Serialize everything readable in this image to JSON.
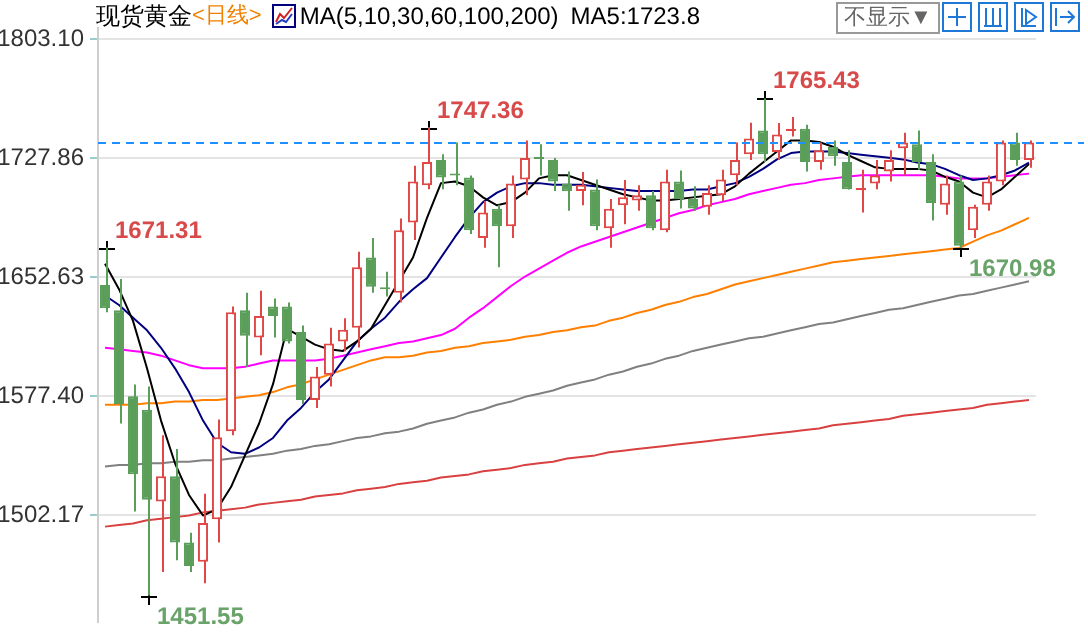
{
  "chart_data": {
    "type": "candlestick",
    "title": "现货黄金",
    "subtitle": "<日线>",
    "annotations": [
      "MA(5,10,30,60,100,200)",
      "MA5:1723.8",
      "不显示▼",
      "1671.31",
      "1451.55",
      "1747.36",
      "1765.43",
      "1670.98"
    ],
    "categories": [
      null,
      null,
      null,
      null,
      null,
      null,
      null,
      null,
      null,
      null,
      null,
      null,
      null,
      null,
      null,
      null,
      null,
      null,
      null,
      null,
      null,
      null,
      null,
      null,
      null,
      null,
      null,
      null,
      null,
      null,
      null,
      null,
      null,
      null,
      null,
      null,
      null,
      null,
      null,
      null,
      null,
      null,
      null,
      null,
      null,
      null,
      null,
      null,
      null,
      null,
      null,
      null,
      null,
      null,
      null,
      null,
      null,
      null,
      null,
      null,
      null,
      null,
      null,
      null,
      null,
      null,
      null
    ],
    "ohlc": [
      [
        1647.7,
        1671.31,
        1630.4,
        1632.9
      ],
      [
        1631.7,
        1651.4,
        1560.1,
        1572.5
      ],
      [
        1577.4,
        1584.8,
        1504.6,
        1528.1
      ],
      [
        1568.8,
        1583.6,
        1451.55,
        1512.0
      ],
      [
        1510.8,
        1552.7,
        1466.4,
        1526.8
      ],
      [
        1526.8,
        1544.1,
        1473.8,
        1485.0
      ],
      [
        1485.0,
        1491.1,
        1466.4,
        1470.1
      ],
      [
        1472.8,
        1515.7,
        1459.3,
        1497.3
      ],
      [
        1499.7,
        1562.6,
        1485.0,
        1551.5
      ],
      [
        1555.2,
        1634.1,
        1552.7,
        1630.4
      ],
      [
        1631.7,
        1642.8,
        1595.9,
        1615.6
      ],
      [
        1614.4,
        1644.0,
        1603.3,
        1628.0
      ],
      [
        1634.1,
        1639.1,
        1614.4,
        1628.0
      ],
      [
        1634.0,
        1636.6,
        1610.7,
        1612.0
      ],
      [
        1618.0,
        1622.0,
        1572.5,
        1575.0
      ],
      [
        1575.0,
        1595.9,
        1570.0,
        1589.8
      ],
      [
        1591.0,
        1620.6,
        1583.6,
        1610.7
      ],
      [
        1612.0,
        1626.7,
        1605.8,
        1619.3
      ],
      [
        1620.6,
        1668.7,
        1608.2,
        1658.8
      ],
      [
        1665.0,
        1677.3,
        1642.8,
        1646.5
      ],
      [
        1646.0,
        1656.0,
        1640.3,
        1645.0
      ],
      [
        1642.8,
        1689.6,
        1636.6,
        1682.2
      ],
      [
        1687.2,
        1722.9,
        1676.1,
        1713.1
      ],
      [
        1710.6,
        1747.36,
        1708.1,
        1725.4
      ],
      [
        1726.6,
        1730.3,
        1708.1,
        1715.5
      ],
      [
        1718.0,
        1737.7,
        1710.6,
        1716.8
      ],
      [
        1715.5,
        1716.8,
        1679.8,
        1682.2
      ],
      [
        1677.3,
        1700.7,
        1671.2,
        1693.4
      ],
      [
        1695.8,
        1698.3,
        1658.8,
        1684.7
      ],
      [
        1684.7,
        1716.8,
        1677.3,
        1711.8
      ],
      [
        1714.3,
        1739.0,
        1704.4,
        1727.9
      ],
      [
        1728.5,
        1736.5,
        1716.8,
        1727.2
      ],
      [
        1726.6,
        1727.9,
        1707.0,
        1713.0
      ],
      [
        1711.8,
        1719.3,
        1694.6,
        1706.9
      ],
      [
        1707.0,
        1719.0,
        1698.0,
        1711.0
      ],
      [
        1708.0,
        1714.3,
        1682.2,
        1684.7
      ],
      [
        1683.5,
        1702.0,
        1671.2,
        1695.8
      ],
      [
        1698.0,
        1714.0,
        1686.0,
        1703.0
      ],
      [
        1701.0,
        1710.6,
        1694.6,
        1704.4
      ],
      [
        1704.4,
        1707.0,
        1682.2,
        1683.5
      ],
      [
        1682.2,
        1720.5,
        1681.0,
        1713.1
      ],
      [
        1713.0,
        1720.0,
        1696.0,
        1702.0
      ],
      [
        1702.0,
        1710.0,
        1694.6,
        1696.0
      ],
      [
        1697.0,
        1710.6,
        1692.1,
        1705.7
      ],
      [
        1704.4,
        1720.5,
        1700.7,
        1714.3
      ],
      [
        1717.0,
        1737.7,
        1710.6,
        1726.6
      ],
      [
        1730.3,
        1750.1,
        1726.6,
        1740.2
      ],
      [
        1745.2,
        1765.43,
        1725.4,
        1730.3
      ],
      [
        1731.6,
        1750.0,
        1726.6,
        1742.7
      ],
      [
        1745.0,
        1753.8,
        1741.4,
        1746.4
      ],
      [
        1746.4,
        1748.9,
        1719.3,
        1725.4
      ],
      [
        1725.4,
        1737.7,
        1720.5,
        1732.8
      ],
      [
        1735.0,
        1739.0,
        1723.0,
        1729.0
      ],
      [
        1725.4,
        1732.8,
        1708.0,
        1708.1
      ],
      [
        1707.5,
        1720.5,
        1693.4,
        1709.0
      ],
      [
        1711.8,
        1726.6,
        1708.1,
        1716.8
      ],
      [
        1719.3,
        1732.8,
        1713.1,
        1726.6
      ],
      [
        1734.0,
        1743.9,
        1716.8,
        1737.7
      ],
      [
        1736.5,
        1745.2,
        1720.5,
        1725.4
      ],
      [
        1725.4,
        1730.3,
        1688.4,
        1699.5
      ],
      [
        1698.3,
        1716.8,
        1692.1,
        1711.8
      ],
      [
        1713.1,
        1716.8,
        1670.98,
        1672.4
      ],
      [
        1682.2,
        1698.3,
        1677.3,
        1697.0
      ],
      [
        1698.3,
        1716.8,
        1694.6,
        1713.1
      ],
      [
        1713.1,
        1739.0,
        1710.6,
        1737.7
      ],
      [
        1737.7,
        1743.9,
        1723.0,
        1726.6
      ],
      [
        1726.6,
        1739.0,
        1721.7,
        1737.7
      ]
    ],
    "colors": [
      "#5a9e5a",
      "#5a9e5a",
      "#5a9e5a",
      "#5a9e5a",
      "#e04848",
      "#5a9e5a",
      "#5a9e5a",
      "#e04848",
      "#e04848",
      "#e04848",
      "#5a9e5a",
      "#e04848",
      "#5a9e5a",
      "#5a9e5a",
      "#5a9e5a",
      "#e04848",
      "#e04848",
      "#e04848",
      "#e04848",
      "#5a9e5a",
      "#5a9e5a",
      "#e04848",
      "#e04848",
      "#e04848",
      "#5a9e5a",
      "#5a9e5a",
      "#5a9e5a",
      "#e04848",
      "#5a9e5a",
      "#e04848",
      "#e04848",
      "#5a9e5a",
      "#5a9e5a",
      "#5a9e5a",
      "#e04848",
      "#5a9e5a",
      "#e04848",
      "#e04848",
      "#e04848",
      "#5a9e5a",
      "#e04848",
      "#5a9e5a",
      "#5a9e5a",
      "#e04848",
      "#e04848",
      "#e04848",
      "#e04848",
      "#5a9e5a",
      "#e04848",
      "#e04848",
      "#5a9e5a",
      "#e04848",
      "#5a9e5a",
      "#5a9e5a",
      "#e04848",
      "#e04848",
      "#e04848",
      "#e04848",
      "#5a9e5a",
      "#5a9e5a",
      "#e04848",
      "#5a9e5a",
      "#e04848",
      "#e04848",
      "#e04848",
      "#5a9e5a",
      "#e04848"
    ],
    "series": [
      {
        "type": "line",
        "color": "#000000",
        "values": [
          1661,
          1645,
          1625,
          1595,
          1562,
          1535,
          1515,
          1502,
          1506,
          1520,
          1540,
          1560,
          1585,
          1620,
          1615,
          1610,
          1607,
          1606,
          1612,
          1620,
          1635,
          1650,
          1665,
          1690,
          1712,
          1713,
          1710,
          1703,
          1698,
          1700,
          1706,
          1715,
          1717,
          1717,
          1714,
          1711,
          1708,
          1705,
          1703,
          1701,
          1701,
          1702,
          1703,
          1704,
          1705,
          1710,
          1718,
          1725,
          1732,
          1739,
          1739,
          1738,
          1735,
          1730,
          1726,
          1722,
          1721,
          1721,
          1721,
          1720,
          1716,
          1713,
          1706,
          1703,
          1708,
          1716,
          1724
        ]
      },
      {
        "type": "line",
        "color": "#000080",
        "values": [
          1641,
          1635,
          1627,
          1619,
          1608,
          1595,
          1580,
          1562,
          1548,
          1542,
          1541,
          1545,
          1551,
          1562,
          1570,
          1580,
          1588,
          1600,
          1612,
          1620,
          1627,
          1637,
          1645,
          1652,
          1665,
          1678,
          1690,
          1700,
          1706,
          1710,
          1712,
          1712,
          1711,
          1711,
          1711,
          1710,
          1709,
          1708,
          1707,
          1707,
          1707,
          1707,
          1708,
          1708,
          1710,
          1712,
          1716,
          1721,
          1727,
          1731,
          1732,
          1732,
          1732,
          1731,
          1730,
          1729,
          1728,
          1727,
          1725,
          1724,
          1721,
          1717,
          1714,
          1715,
          1717,
          1720,
          1725
        ]
      },
      {
        "type": "line",
        "color": "#ff00ff",
        "values": [
          1608,
          1607,
          1606,
          1605,
          1603,
          1600,
          1597,
          1595,
          1595,
          1595,
          1596,
          1598,
          1600,
          1600,
          1600,
          1600,
          1601,
          1603,
          1605,
          1607,
          1609,
          1611,
          1612,
          1614,
          1616,
          1620,
          1627,
          1633,
          1640,
          1647,
          1653,
          1658,
          1663,
          1668,
          1672,
          1675,
          1678,
          1681,
          1684,
          1687,
          1690,
          1693,
          1695,
          1698,
          1700,
          1702,
          1705,
          1707,
          1709,
          1711,
          1712,
          1714,
          1715,
          1716,
          1717,
          1717,
          1717,
          1717,
          1717,
          1717,
          1716,
          1715,
          1715,
          1715,
          1716,
          1717,
          1718
        ]
      },
      {
        "type": "line",
        "color": "#ff8000",
        "values": [
          1572,
          1572,
          1572,
          1573,
          1573,
          1574,
          1574,
          1575,
          1575,
          1576,
          1577,
          1578,
          1580,
          1583,
          1585,
          1588,
          1591,
          1594,
          1597,
          1600,
          1602,
          1602,
          1603,
          1605,
          1606,
          1608,
          1609,
          1611,
          1612,
          1613,
          1615,
          1616,
          1618,
          1619,
          1621,
          1622,
          1625,
          1627,
          1630,
          1632,
          1635,
          1637,
          1640,
          1642,
          1645,
          1648,
          1650,
          1652,
          1654,
          1656,
          1658,
          1660,
          1662,
          1663,
          1664,
          1665,
          1666,
          1667,
          1668,
          1669,
          1670,
          1671,
          1675,
          1679,
          1682,
          1686,
          1690
        ]
      },
      {
        "type": "line",
        "color": "#808080",
        "values": [
          1533,
          1534,
          1534,
          1535,
          1535,
          1536,
          1536,
          1537,
          1537,
          1538,
          1539,
          1540,
          1541,
          1543,
          1544,
          1546,
          1547,
          1549,
          1551,
          1552,
          1554,
          1555,
          1557,
          1560,
          1562,
          1564,
          1567,
          1569,
          1572,
          1574,
          1577,
          1579,
          1581,
          1584,
          1586,
          1588,
          1591,
          1593,
          1596,
          1598,
          1601,
          1603,
          1606,
          1608,
          1610,
          1612,
          1614,
          1615,
          1617,
          1619,
          1621,
          1623,
          1624,
          1626,
          1628,
          1630,
          1632,
          1633,
          1635,
          1637,
          1639,
          1641,
          1642,
          1644,
          1646,
          1648,
          1650
        ]
      },
      {
        "type": "line",
        "color": "#d94040",
        "values": [
          1495,
          1496,
          1497,
          1499,
          1500,
          1501,
          1502,
          1504,
          1505,
          1506,
          1507,
          1509,
          1510,
          1511,
          1512,
          1514,
          1515,
          1516,
          1518,
          1519,
          1520,
          1522,
          1523,
          1524,
          1526,
          1527,
          1528,
          1530,
          1531,
          1532,
          1534,
          1535,
          1536,
          1538,
          1539,
          1540,
          1542,
          1543,
          1544,
          1545,
          1546,
          1547,
          1548,
          1549,
          1550,
          1551,
          1552,
          1553,
          1554,
          1555,
          1556,
          1557,
          1559,
          1560,
          1561,
          1562,
          1563,
          1565,
          1566,
          1567,
          1568,
          1569,
          1570,
          1572,
          1573,
          1574,
          1575
        ]
      }
    ],
    "ylim": [
      1435,
      1810
    ],
    "yticks": [
      {
        "value": 1502.17,
        "label": "1502.17"
      },
      {
        "value": 1577.4,
        "label": "1577.40"
      },
      {
        "value": 1652.63,
        "label": "1652.63"
      },
      {
        "value": 1727.86,
        "label": "1727.86"
      },
      {
        "value": 1803.1,
        "label": "1803.10"
      }
    ],
    "grid": "y",
    "tick_labels": "y",
    "marker": "none",
    "line_style": "solid",
    "ref_lines": [
      {
        "axis": "y",
        "value": 1738,
        "color": "#1e90ff",
        "line_style": "dashed"
      }
    ]
  }
}
